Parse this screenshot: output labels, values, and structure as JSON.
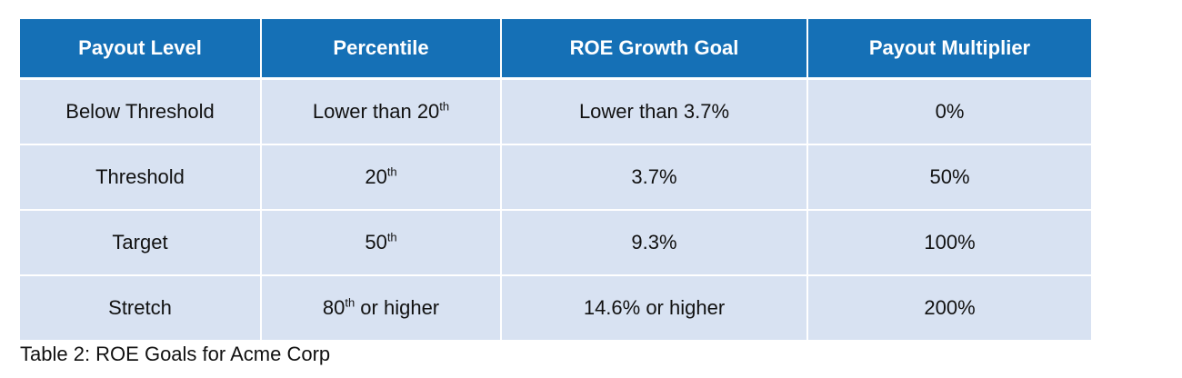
{
  "table": {
    "headers": [
      "Payout Level",
      "Percentile",
      "ROE Growth Goal",
      "Payout Multiplier"
    ],
    "rows": [
      {
        "payout_level": "Below Threshold",
        "percentile_pre": "Lower than 20",
        "percentile_sup": "th",
        "percentile_post": "",
        "roe_goal": "Lower than 3.7%",
        "multiplier": "0%"
      },
      {
        "payout_level": "Threshold",
        "percentile_pre": "20",
        "percentile_sup": "th",
        "percentile_post": "",
        "roe_goal": "3.7%",
        "multiplier": "50%"
      },
      {
        "payout_level": "Target",
        "percentile_pre": "50",
        "percentile_sup": "th",
        "percentile_post": "",
        "roe_goal": "9.3%",
        "multiplier": "100%"
      },
      {
        "payout_level": "Stretch",
        "percentile_pre": "80",
        "percentile_sup": "th",
        "percentile_post": " or higher",
        "roe_goal": "14.6% or higher",
        "multiplier": "200%"
      }
    ]
  },
  "caption": "Table 2: ROE Goals for Acme Corp",
  "colors": {
    "header_bg": "#1570b6",
    "row_bg": "#d8e2f2"
  }
}
